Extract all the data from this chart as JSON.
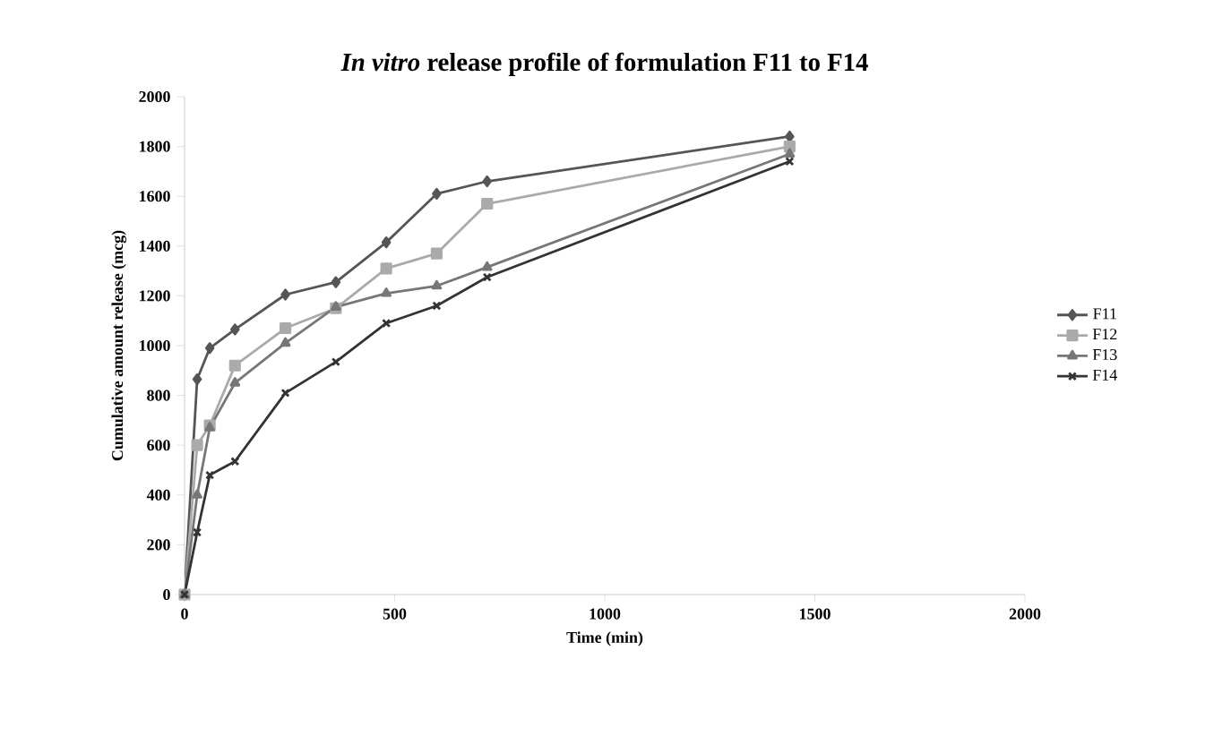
{
  "chart_data": {
    "type": "line",
    "title": "*In vitro* release profile of formulation F11 to F14",
    "xlabel": "Time (min)",
    "ylabel": "Cumulative amount release (mcg)",
    "x": [
      0,
      30,
      60,
      120,
      240,
      360,
      480,
      600,
      720,
      1440
    ],
    "series": [
      {
        "name": "F11",
        "color": "#555555",
        "marker": "diamond",
        "values": [
          0,
          865,
          990,
          1065,
          1205,
          1255,
          1415,
          1610,
          1660,
          1840
        ]
      },
      {
        "name": "F12",
        "color": "#aaaaaa",
        "marker": "square",
        "values": [
          0,
          600,
          680,
          920,
          1070,
          1150,
          1310,
          1370,
          1570,
          1800
        ]
      },
      {
        "name": "F13",
        "color": "#777777",
        "marker": "triangle",
        "values": [
          0,
          400,
          670,
          850,
          1010,
          1155,
          1210,
          1240,
          1315,
          1770
        ]
      },
      {
        "name": "F14",
        "color": "#333333",
        "marker": "cross",
        "values": [
          0,
          250,
          480,
          535,
          810,
          935,
          1090,
          1160,
          1275,
          1740
        ]
      }
    ],
    "xlim": [
      0,
      2000
    ],
    "xticks": [
      0,
      500,
      1000,
      1500,
      2000
    ],
    "ylim": [
      0,
      2000
    ],
    "yticks": [
      0,
      200,
      400,
      600,
      800,
      1000,
      1200,
      1400,
      1600,
      1800,
      2000
    ],
    "grid": false,
    "legend": "right"
  }
}
